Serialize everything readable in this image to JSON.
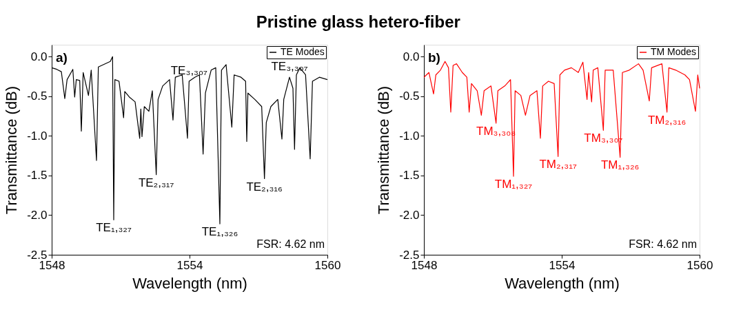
{
  "chart_data": [
    {
      "type": "line",
      "title": "Pristine glass hetero-fiber",
      "xlabel": "Wavelength (nm)",
      "ylabel": "Transmittance (dB)",
      "xlim": [
        1548,
        1560
      ],
      "xticks": [
        1548,
        1554,
        1560
      ],
      "ylim": [
        -2.5,
        0.15
      ],
      "yticks": [
        {
          "value": -2.5,
          "label": "-2.5"
        },
        {
          "value": -2,
          "label": "-2.0"
        },
        {
          "value": -1.5,
          "label": "-1.5"
        },
        {
          "value": -1,
          "label": "-1.0"
        },
        {
          "value": -0.5,
          "label": "-0.5"
        },
        {
          "value": 0,
          "label": "0.0"
        }
      ],
      "grid": false,
      "legend": "top right",
      "x": [
        1548.0,
        1548.22,
        1548.42,
        1548.57,
        1548.67,
        1548.92,
        1549.0,
        1549.07,
        1549.22,
        1549.29,
        1549.37,
        1549.6,
        1549.72,
        1549.95,
        1550.03,
        1550.55,
        1550.65,
        1550.7,
        1550.75,
        1550.93,
        1551.13,
        1551.18,
        1551.38,
        1551.63,
        1551.83,
        1551.88,
        1551.93,
        1552.03,
        1552.23,
        1552.38,
        1552.55,
        1552.63,
        1552.83,
        1553.13,
        1553.28,
        1553.38,
        1553.68,
        1553.91,
        1553.98,
        1554.23,
        1554.43,
        1554.59,
        1554.69,
        1554.94,
        1555.14,
        1555.32,
        1555.39,
        1555.59,
        1555.84,
        1555.94,
        1556.24,
        1556.44,
        1556.49,
        1556.54,
        1556.84,
        1557.14,
        1557.26,
        1557.34,
        1557.54,
        1557.84,
        1558.02,
        1558.1,
        1558.35,
        1558.5,
        1558.57,
        1558.65,
        1558.8,
        1559.05,
        1559.25,
        1559.35,
        1559.65,
        1560.0
      ],
      "series": [
        {
          "name": "TE Modes",
          "color": "#000000",
          "values": [
            -0.14,
            -0.16,
            -0.19,
            -0.53,
            -0.29,
            -0.16,
            -0.51,
            -0.29,
            -0.3,
            -0.94,
            -0.2,
            -0.49,
            -0.17,
            -1.31,
            -0.13,
            -0.06,
            0.0,
            -2.06,
            -0.29,
            -0.31,
            -0.77,
            -0.44,
            -0.51,
            -0.57,
            -1.03,
            -0.66,
            -1.01,
            -0.63,
            -0.69,
            -0.43,
            -1.49,
            -0.54,
            -0.37,
            -0.29,
            -0.8,
            -0.26,
            -0.23,
            -1.03,
            -0.31,
            -0.26,
            -0.23,
            -1.23,
            -0.46,
            -0.17,
            -0.14,
            -2.11,
            -0.17,
            -0.1,
            -0.89,
            -0.23,
            -0.26,
            -0.31,
            -1.07,
            -0.46,
            -0.54,
            -0.63,
            -1.54,
            -0.83,
            -0.63,
            -0.54,
            -1.04,
            -0.54,
            -0.26,
            -0.4,
            -1.17,
            -0.23,
            -0.14,
            -0.23,
            -1.29,
            -0.31,
            -0.26,
            -0.29
          ]
        }
      ],
      "annotations": [
        "a)",
        "FSR: 4.62 nm",
        {
          "text": "TE₁,₃₂₇",
          "x": 1550.7,
          "y": -2.06
        },
        {
          "text": "TE₂,₃₁₇",
          "x": 1552.55,
          "y": -1.49
        },
        {
          "text": "TE₁,₃₂₆",
          "x": 1555.32,
          "y": -2.11
        },
        {
          "text": "TE₂,₃₁₆",
          "x": 1557.26,
          "y": -1.54
        },
        {
          "text": "TE₃,₃₀₇",
          "x": 1553.98,
          "y": -0.31
        },
        {
          "text": "TE₃,₃₀₇",
          "x": 1558.35,
          "y": -0.26
        }
      ]
    },
    {
      "type": "line",
      "xlabel": "Wavelength (nm)",
      "ylabel": "Transmittance (dB)",
      "xlim": [
        1548,
        1560
      ],
      "xticks": [
        1548,
        1554,
        1560
      ],
      "ylim": [
        -2.5,
        0.15
      ],
      "yticks": [
        {
          "value": -2.5,
          "label": "-2.5"
        },
        {
          "value": -2,
          "label": "-2.0"
        },
        {
          "value": -1.5,
          "label": "-1.5"
        },
        {
          "value": -1,
          "label": "-1.0"
        },
        {
          "value": -0.5,
          "label": "-0.5"
        },
        {
          "value": 0,
          "label": "0.0"
        }
      ],
      "grid": false,
      "legend": "top right",
      "x": [
        1548.0,
        1548.22,
        1548.42,
        1548.52,
        1548.72,
        1548.92,
        1549.07,
        1549.17,
        1549.27,
        1549.42,
        1549.67,
        1549.87,
        1549.97,
        1550.07,
        1550.32,
        1550.5,
        1550.62,
        1550.92,
        1551.14,
        1551.22,
        1551.52,
        1551.77,
        1551.9,
        1551.97,
        1552.22,
        1552.42,
        1552.62,
        1552.92,
        1553.07,
        1553.17,
        1553.42,
        1553.67,
        1553.84,
        1553.92,
        1554.12,
        1554.42,
        1554.72,
        1554.92,
        1555.1,
        1555.17,
        1555.3,
        1555.37,
        1555.57,
        1555.81,
        1555.89,
        1556.24,
        1556.54,
        1556.64,
        1556.94,
        1557.34,
        1557.54,
        1557.81,
        1557.91,
        1558.36,
        1558.58,
        1558.66,
        1558.96,
        1559.36,
        1559.56,
        1559.82,
        1559.92,
        1560.0
      ],
      "series": [
        {
          "name": "TM Modes",
          "color": "#ff0000",
          "values": [
            -0.26,
            -0.2,
            -0.47,
            -0.23,
            -0.17,
            -0.06,
            -0.14,
            -0.7,
            -0.11,
            -0.09,
            -0.2,
            -0.26,
            -0.7,
            -0.34,
            -0.43,
            -0.74,
            -0.43,
            -0.37,
            -0.84,
            -0.43,
            -0.37,
            -0.29,
            -1.51,
            -0.43,
            -0.49,
            -0.74,
            -0.49,
            -0.43,
            -1.03,
            -0.37,
            -0.31,
            -0.34,
            -1.26,
            -0.23,
            -0.17,
            -0.14,
            -0.2,
            -0.07,
            -0.54,
            -0.2,
            -0.57,
            -0.17,
            -0.14,
            -0.93,
            -0.17,
            -0.17,
            -1.27,
            -0.2,
            -0.17,
            -0.09,
            -0.17,
            -0.56,
            -0.14,
            -0.09,
            -0.7,
            -0.14,
            -0.17,
            -0.23,
            -0.29,
            -0.69,
            -0.23,
            -0.4
          ]
        }
      ],
      "annotations": [
        "b)",
        "FSR: 4.62 nm",
        {
          "text": "TM₃,₃₀₈",
          "x": 1551.14,
          "y": -0.84
        },
        {
          "text": "TM₁,₃₂₇",
          "x": 1551.9,
          "y": -1.51
        },
        {
          "text": "TM₂,₃₁₇",
          "x": 1553.84,
          "y": -1.26
        },
        {
          "text": "TM₃,₃₀₇",
          "x": 1555.81,
          "y": -0.93
        },
        {
          "text": "TM₁,₃₂₆",
          "x": 1556.54,
          "y": -1.27
        },
        {
          "text": "TM₂,₃₁₆",
          "x": 1558.58,
          "y": -0.7
        }
      ]
    }
  ]
}
